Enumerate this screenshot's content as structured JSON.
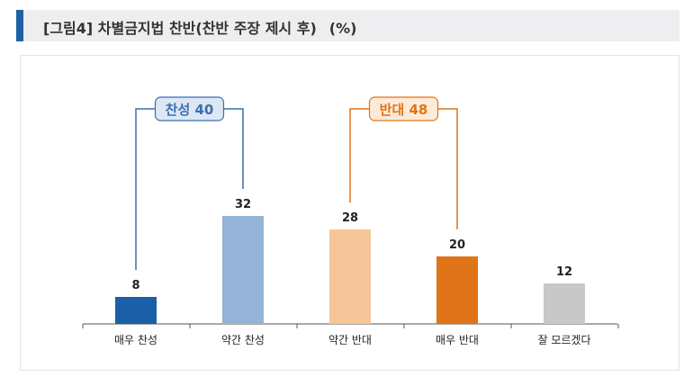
{
  "title": "[그림4] 차별금지법 찬반(찬반 주장 제시 후)",
  "unit": "(%)",
  "chart_data": {
    "type": "bar",
    "categories": [
      "매우 찬성",
      "약간 찬성",
      "약간 반대",
      "매우 반대",
      "잘 모르겠다"
    ],
    "values": [
      8,
      32,
      28,
      20,
      12
    ],
    "colors": [
      "#1b5fa8",
      "#95b3d7",
      "#f6c599",
      "#e07418",
      "#c8c8c8"
    ],
    "ylim": [
      0,
      40
    ],
    "groups": [
      {
        "label": "찬성 40",
        "from": 0,
        "to": 1,
        "color": "#3a6fb0",
        "fill": "#dde7f4"
      },
      {
        "label": "반대 48",
        "from": 2,
        "to": 3,
        "color": "#e07418",
        "fill": "#fdebd9"
      }
    ]
  }
}
